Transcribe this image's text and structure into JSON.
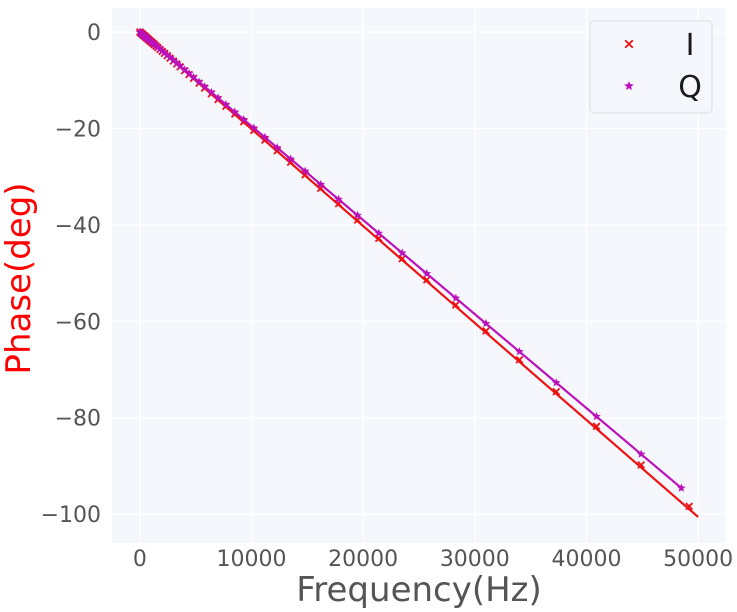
{
  "chart_data": {
    "type": "line",
    "title": "",
    "xlabel": "Frequency(Hz)",
    "ylabel": "Phase(deg)",
    "ylabel_color": "#ff0000",
    "xlim": [
      -2500,
      52500
    ],
    "ylim": [
      -106,
      5
    ],
    "xticks": [
      0,
      10000,
      20000,
      30000,
      40000,
      50000
    ],
    "yticks": [
      0,
      -20,
      -40,
      -60,
      -80,
      -100
    ],
    "xtick_labels": [
      "0",
      "10000",
      "20000",
      "30000",
      "40000",
      "50000"
    ],
    "ytick_labels": [
      "0",
      "−20",
      "−40",
      "−60",
      "−80",
      "−100"
    ],
    "grid": true,
    "background": "#f5f7fd",
    "legend_position": "top-right",
    "series": [
      {
        "name": "I",
        "color": "#ee1111",
        "marker": "x",
        "fit_line": [
          [
            0,
            0
          ],
          [
            50000,
            -100.6
          ]
        ],
        "x": [
          0,
          40,
          80,
          120,
          160,
          200,
          240,
          280,
          320,
          360,
          400,
          450,
          500,
          550,
          600,
          650,
          700,
          750,
          800,
          900,
          1000,
          1100,
          1200,
          1300,
          1450,
          1600,
          1800,
          2000,
          2200,
          2450,
          2700,
          3000,
          3300,
          3600,
          4000,
          4400,
          4800,
          5300,
          5800,
          6400,
          7000,
          7700,
          8500,
          9300,
          10200,
          11200,
          12300,
          13500,
          14800,
          16200,
          17800,
          19500,
          21400,
          23500,
          25700,
          28300,
          31000,
          34000,
          37300,
          40900,
          44900,
          49200
        ],
        "y": [
          0,
          -0.08,
          -0.16,
          -0.24,
          -0.32,
          -0.4,
          -0.48,
          -0.56,
          -0.64,
          -0.72,
          -0.8,
          -0.9,
          -1.0,
          -1.1,
          -1.2,
          -1.3,
          -1.4,
          -1.5,
          -1.6,
          -1.8,
          -2.0,
          -2.2,
          -2.4,
          -2.6,
          -2.9,
          -3.2,
          -3.6,
          -4.0,
          -4.4,
          -4.9,
          -5.4,
          -6.0,
          -6.6,
          -7.2,
          -8.0,
          -8.8,
          -9.6,
          -10.6,
          -11.6,
          -12.8,
          -14.0,
          -15.4,
          -17.0,
          -18.6,
          -20.4,
          -22.4,
          -24.6,
          -27.0,
          -29.6,
          -32.4,
          -35.6,
          -39.0,
          -42.8,
          -47.0,
          -51.4,
          -56.6,
          -62.0,
          -68.0,
          -74.6,
          -81.8,
          -89.8,
          -98.4
        ]
      },
      {
        "name": "Q",
        "color": "#bb11bb",
        "marker": "*",
        "fit_line": [
          [
            0,
            0
          ],
          [
            48500,
            -94.6
          ]
        ],
        "x": [
          0,
          40,
          80,
          120,
          160,
          200,
          240,
          280,
          320,
          360,
          400,
          450,
          500,
          550,
          600,
          650,
          700,
          750,
          800,
          900,
          1000,
          1100,
          1200,
          1300,
          1450,
          1600,
          1800,
          2000,
          2200,
          2450,
          2700,
          3000,
          3300,
          3600,
          4000,
          4400,
          4800,
          5300,
          5800,
          6400,
          7000,
          7700,
          8500,
          9300,
          10200,
          11200,
          12300,
          13500,
          14800,
          16200,
          17800,
          19500,
          21400,
          23500,
          25700,
          28300,
          31000,
          34000,
          37300,
          40900,
          44900,
          48500
        ],
        "y": [
          0,
          -0.08,
          -0.16,
          -0.23,
          -0.31,
          -0.39,
          -0.47,
          -0.55,
          -0.62,
          -0.7,
          -0.78,
          -0.88,
          -0.98,
          -1.07,
          -1.17,
          -1.27,
          -1.37,
          -1.46,
          -1.56,
          -1.76,
          -1.95,
          -2.15,
          -2.34,
          -2.54,
          -2.83,
          -3.12,
          -3.51,
          -3.9,
          -4.29,
          -4.78,
          -5.27,
          -5.85,
          -6.44,
          -7.02,
          -7.8,
          -8.58,
          -9.36,
          -10.34,
          -11.31,
          -12.48,
          -13.65,
          -15.02,
          -16.58,
          -18.14,
          -19.89,
          -21.84,
          -23.99,
          -26.33,
          -28.86,
          -31.59,
          -34.71,
          -38.03,
          -41.73,
          -45.83,
          -50.12,
          -55.19,
          -60.45,
          -66.3,
          -72.74,
          -79.76,
          -87.56,
          -94.6
        ]
      }
    ]
  }
}
